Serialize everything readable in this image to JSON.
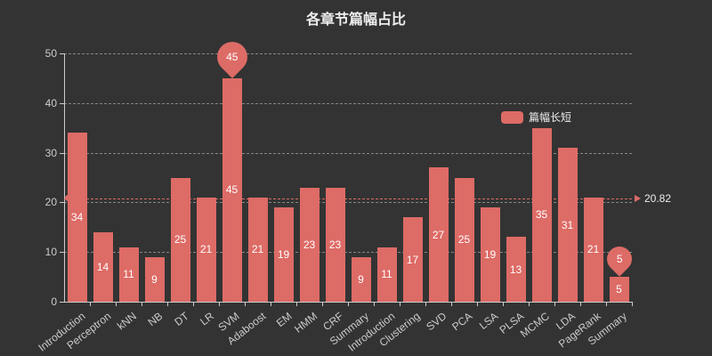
{
  "chart_data": {
    "type": "bar",
    "title": "各章节篇幅占比",
    "legend": "篇幅长短",
    "categories": [
      "Introduction",
      "Perceptron",
      "kNN",
      "NB",
      "DT",
      "LR",
      "SVM",
      "Adaboost",
      "EM",
      "HMM",
      "CRF",
      "Summary",
      "Introduction",
      "Clustering",
      "SVD",
      "PCA",
      "LSA",
      "PLSA",
      "MCMC",
      "LDA",
      "PageRank",
      "Summary"
    ],
    "values": [
      34,
      14,
      11,
      9,
      25,
      21,
      45,
      21,
      19,
      23,
      23,
      9,
      11,
      17,
      27,
      25,
      19,
      13,
      35,
      31,
      21,
      5
    ],
    "xlabel": "",
    "ylabel": "",
    "ylim": [
      0,
      50
    ],
    "yticks": [
      0,
      10,
      20,
      30,
      40,
      50
    ],
    "grid": "dashed-horizontal",
    "legend_position": "middle-right-inside",
    "average_line": {
      "value": 20.82,
      "label": "20.82"
    },
    "mark_max": {
      "category": "SVM",
      "value": 45
    },
    "mark_min": {
      "category": "Summary",
      "value": 5
    },
    "colors": {
      "background": "#333333",
      "bar": "#dd6b66",
      "text": "#eeeeee",
      "axis": "#cccccc",
      "grid": "rgba(238,238,238,0.45)"
    }
  }
}
